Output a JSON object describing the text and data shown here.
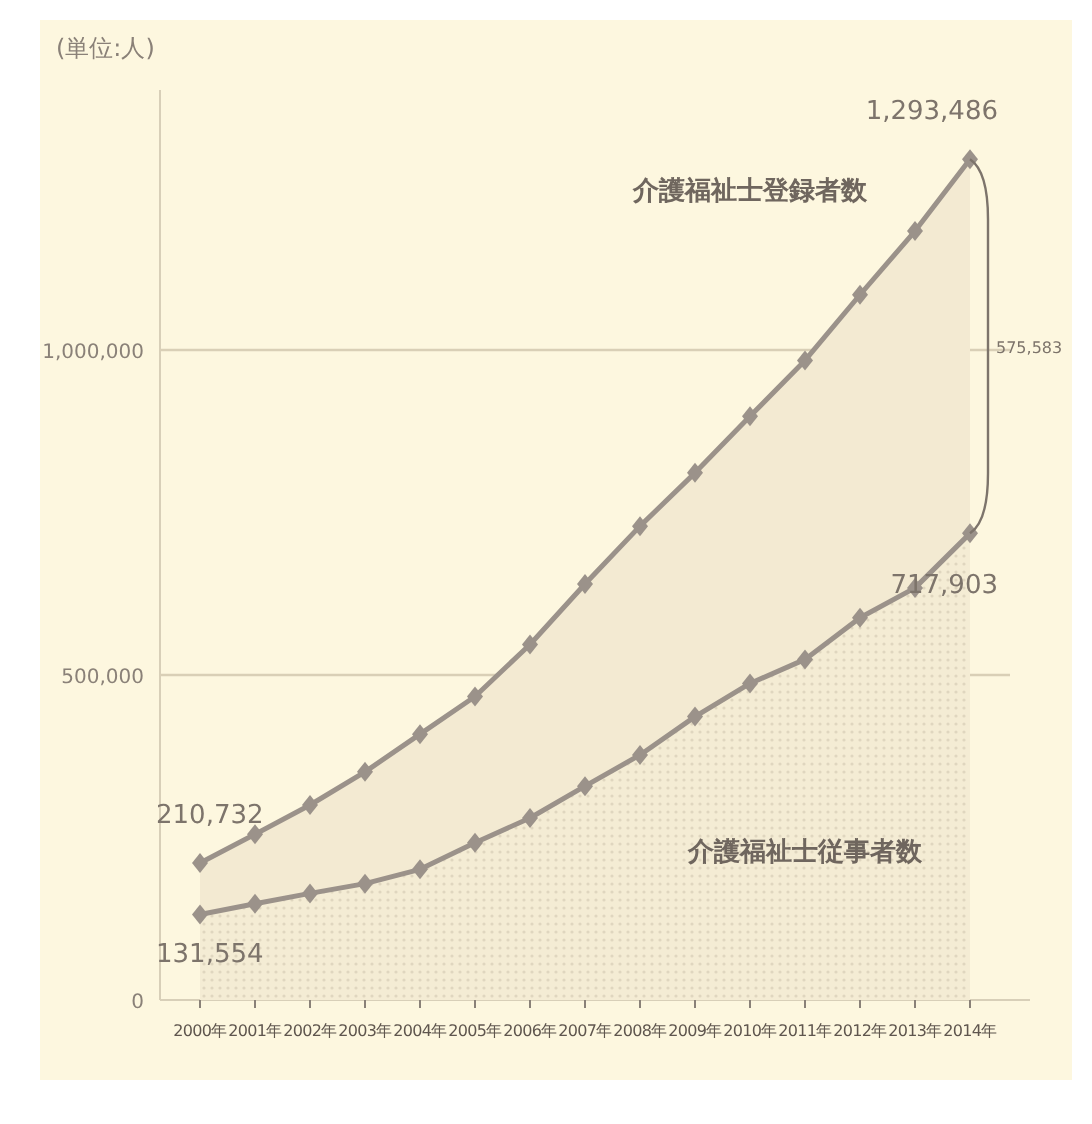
{
  "chart_data": {
    "type": "area",
    "ylabel": "(単位:人)",
    "categories": [
      "2000年",
      "2001年",
      "2002年",
      "2003年",
      "2004年",
      "2005年",
      "2006年",
      "2007年",
      "2008年",
      "2009年",
      "2010年",
      "2011年",
      "2012年",
      "2013年",
      "2014年"
    ],
    "series": [
      {
        "name": "介護福祉士登録者数",
        "color": "#9b928a",
        "values": [
          210732,
          255000,
          300000,
          351000,
          409000,
          467000,
          547000,
          640000,
          729000,
          811000,
          898000,
          984000,
          1085000,
          1183000,
          1293486
        ],
        "value_labels": [
          "210,732",
          null,
          null,
          null,
          null,
          null,
          null,
          null,
          null,
          null,
          null,
          null,
          null,
          null,
          "1,293,486"
        ]
      },
      {
        "name": "介護福祉士従事者数",
        "color": "#9b928a",
        "values": [
          131554,
          148000,
          164000,
          179000,
          201000,
          242000,
          280000,
          329000,
          377000,
          436000,
          487000,
          524000,
          588000,
          634000,
          717903
        ],
        "value_labels": [
          "131,554",
          null,
          null,
          null,
          null,
          null,
          null,
          null,
          null,
          null,
          null,
          null,
          null,
          null,
          "717,903"
        ]
      }
    ],
    "annotations": [
      {
        "text": "575,583",
        "x": "2014年",
        "y": 1005000
      }
    ],
    "ylim": [
      0,
      1400000
    ],
    "yticks": [
      0,
      {
        "value": 500000,
        "label": "500,000"
      },
      {
        "value": 1000000,
        "label": "1,000,000"
      }
    ],
    "grid": "y",
    "marker": "diamond"
  }
}
